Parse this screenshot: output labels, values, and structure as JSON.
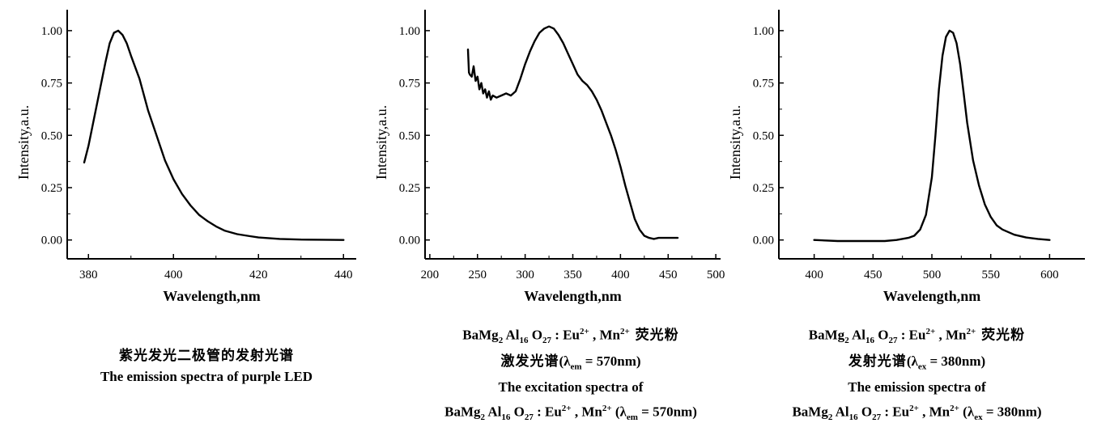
{
  "chart_data": [
    {
      "type": "line",
      "xlabel": "Wavelength,nm",
      "ylabel": "Intensity,a.u.",
      "xlim": [
        375,
        443
      ],
      "ylim": [
        -0.09,
        1.1
      ],
      "xticks": [
        380,
        400,
        420,
        440
      ],
      "yticks": [
        0.0,
        0.25,
        0.5,
        0.75,
        1.0
      ],
      "ytick_labels": [
        "0.00",
        "0.25",
        "0.50",
        "0.75",
        "1.00"
      ],
      "series": [
        {
          "x": [
            379,
            380,
            382,
            384,
            385,
            386,
            387,
            388,
            389,
            390,
            392,
            394,
            396,
            398,
            400,
            402,
            404,
            406,
            408,
            410,
            412,
            415,
            418,
            420,
            425,
            430,
            435,
            440
          ],
          "y": [
            0.37,
            0.45,
            0.65,
            0.85,
            0.94,
            0.99,
            1.0,
            0.98,
            0.94,
            0.88,
            0.77,
            0.62,
            0.5,
            0.38,
            0.29,
            0.22,
            0.165,
            0.12,
            0.09,
            0.065,
            0.045,
            0.028,
            0.018,
            0.012,
            0.005,
            0.002,
            0.001,
            0.0
          ]
        }
      ]
    },
    {
      "type": "line",
      "xlabel": "Wavelength,nm",
      "ylabel": "Intensity,a.u.",
      "xlim": [
        195,
        505
      ],
      "ylim": [
        -0.09,
        1.1
      ],
      "xticks": [
        200,
        250,
        300,
        350,
        400,
        450,
        500
      ],
      "yticks": [
        0.0,
        0.25,
        0.5,
        0.75,
        1.0
      ],
      "ytick_labels": [
        "0.00",
        "0.25",
        "0.50",
        "0.75",
        "1.00"
      ],
      "series": [
        {
          "x": [
            240,
            241,
            242,
            244,
            246,
            248,
            250,
            252,
            254,
            256,
            258,
            260,
            262,
            264,
            266,
            270,
            275,
            280,
            285,
            290,
            295,
            300,
            305,
            310,
            315,
            320,
            325,
            330,
            335,
            340,
            345,
            350,
            355,
            360,
            365,
            370,
            375,
            380,
            385,
            390,
            395,
            400,
            405,
            410,
            415,
            420,
            425,
            430,
            435,
            440,
            450,
            460
          ],
          "y": [
            0.91,
            0.8,
            0.79,
            0.78,
            0.83,
            0.76,
            0.78,
            0.72,
            0.75,
            0.7,
            0.72,
            0.68,
            0.71,
            0.67,
            0.69,
            0.68,
            0.69,
            0.7,
            0.69,
            0.71,
            0.77,
            0.84,
            0.9,
            0.95,
            0.99,
            1.01,
            1.02,
            1.01,
            0.98,
            0.94,
            0.89,
            0.84,
            0.79,
            0.76,
            0.74,
            0.71,
            0.67,
            0.62,
            0.56,
            0.5,
            0.43,
            0.35,
            0.26,
            0.18,
            0.1,
            0.05,
            0.02,
            0.01,
            0.005,
            0.01,
            0.01,
            0.01
          ]
        }
      ]
    },
    {
      "type": "line",
      "xlabel": "Wavelength,nm",
      "ylabel": "Intensity,a.u.",
      "xlim": [
        370,
        630
      ],
      "ylim": [
        -0.09,
        1.1
      ],
      "xticks": [
        400,
        450,
        500,
        550,
        600
      ],
      "yticks": [
        0.0,
        0.25,
        0.5,
        0.75,
        1.0
      ],
      "ytick_labels": [
        "0.00",
        "0.25",
        "0.50",
        "0.75",
        "1.00"
      ],
      "series": [
        {
          "x": [
            400,
            420,
            440,
            460,
            470,
            480,
            485,
            490,
            495,
            500,
            503,
            506,
            509,
            512,
            515,
            518,
            521,
            524,
            527,
            530,
            535,
            540,
            545,
            550,
            555,
            560,
            570,
            580,
            590,
            600
          ],
          "y": [
            0.0,
            -0.005,
            -0.005,
            -0.005,
            0.0,
            0.01,
            0.02,
            0.05,
            0.12,
            0.3,
            0.5,
            0.72,
            0.88,
            0.97,
            1.0,
            0.99,
            0.94,
            0.84,
            0.7,
            0.56,
            0.38,
            0.26,
            0.17,
            0.11,
            0.07,
            0.05,
            0.025,
            0.012,
            0.005,
            0.0
          ]
        }
      ]
    }
  ],
  "captions": {
    "left": {
      "zh": "紫光发光二极管的发射光谱",
      "en": "The emission spectra of purple LED"
    },
    "middle": {
      "formula_ba": "BaMg",
      "formula_2": "2",
      "formula_al": " Al",
      "formula_16": "16",
      "formula_o": " O",
      "formula_27": "27",
      "formula_eu": " : Eu",
      "formula_mn": " , Mn",
      "charge": "2+",
      "zh1": " 荧光粉",
      "zh2": "激发光谱",
      "lambda_open": "(λ",
      "lambda_sub": "em",
      "lambda_val": " = 570nm)",
      "en": "The excitation spectra of",
      "lambda_open2": " (λ",
      "lambda_val2": " = 570nm)"
    },
    "right": {
      "zh1": " 荧光粉",
      "zh2": "发射光谱",
      "lambda_open": "(λ",
      "lambda_sub": "ex",
      "lambda_val": " = 380nm)",
      "en": "The emission spectra of",
      "lambda_open2": " (λ",
      "lambda_val2": " = 380nm)"
    }
  }
}
